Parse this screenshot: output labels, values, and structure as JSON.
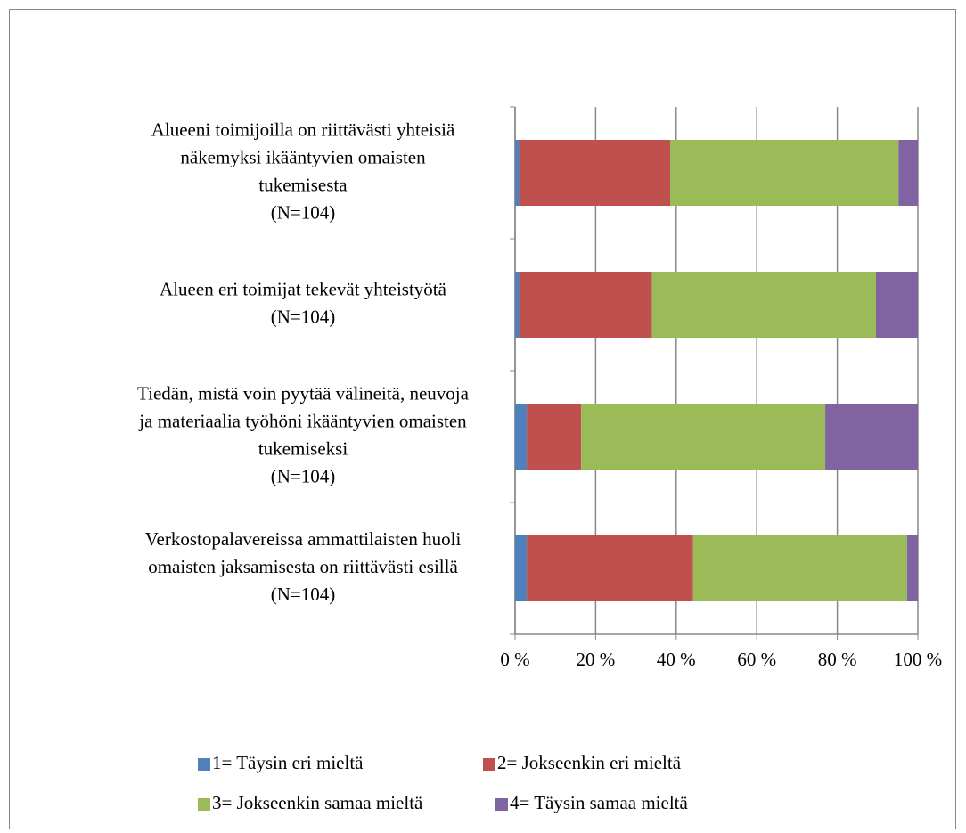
{
  "chart_data": {
    "type": "stacked_barh",
    "categories": [
      "Alueeni toimijoilla on riittävästi yhteisiä\nnäkemyksi ikääntyvien omaisten\ntukemisesta\n(N=104)",
      "Alueen eri toimijat tekevät yhteistyötä\n(N=104)",
      "Tiedän, mistä voin pyytää välineitä, neuvoja\nja materiaalia työhöni ikääntyvien omaisten\ntukemiseksi\n(N=104)",
      "Verkostopalavereissa ammattilaisten huoli\nomaisten jaksamisesta on riittävästi esillä\n(N=104)"
    ],
    "series": [
      {
        "name": "1= Täysin eri mieltä",
        "color": "#4f81bd",
        "values": [
          1.0,
          1.0,
          2.9,
          2.9
        ]
      },
      {
        "name": "2= Jokseenkin eri mieltä",
        "color": "#c0504d",
        "values": [
          37.5,
          33.0,
          13.5,
          41.3
        ]
      },
      {
        "name": "3= Jokseenkin samaa mieltä",
        "color": "#9bbb59",
        "values": [
          56.7,
          55.6,
          60.6,
          53.1
        ]
      },
      {
        "name": "4= Täysin samaa mieltä",
        "color": "#8064a2",
        "values": [
          4.8,
          10.4,
          23.0,
          2.7
        ]
      }
    ],
    "xlim": [
      0,
      100
    ],
    "xticks": [
      {
        "value": 0,
        "label": "0 %"
      },
      {
        "value": 20,
        "label": "20 %"
      },
      {
        "value": 40,
        "label": "40 %"
      },
      {
        "value": 60,
        "label": "60 %"
      },
      {
        "value": 80,
        "label": "80 %"
      },
      {
        "value": 100,
        "label": "100 %"
      }
    ],
    "grid": true,
    "legend": "bottom"
  }
}
